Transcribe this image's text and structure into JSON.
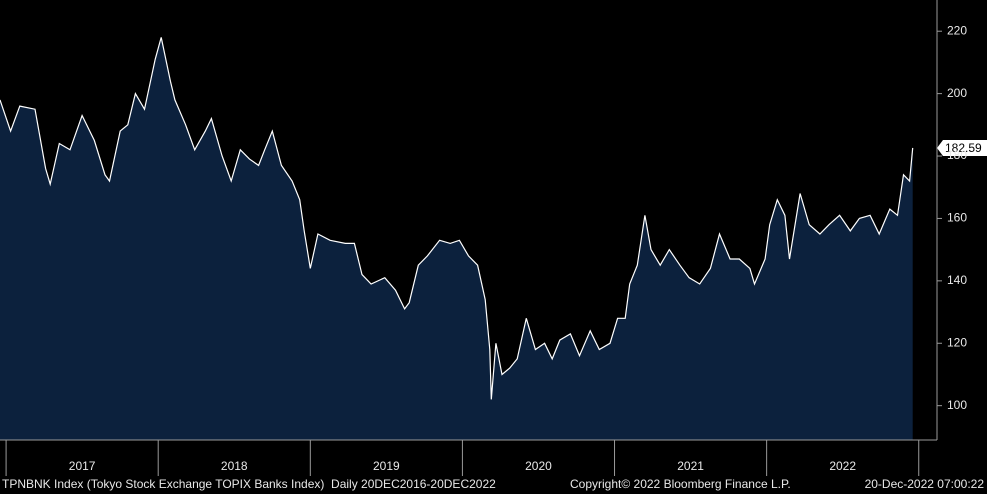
{
  "chart_data": {
    "type": "area",
    "x": [
      2016.96,
      2017.03,
      2017.09,
      2017.19,
      2017.26,
      2017.29,
      2017.35,
      2017.42,
      2017.5,
      2017.58,
      2017.65,
      2017.68,
      2017.75,
      2017.8,
      2017.85,
      2017.91,
      2017.98,
      2018.02,
      2018.08,
      2018.11,
      2018.18,
      2018.24,
      2018.31,
      2018.35,
      2018.42,
      2018.48,
      2018.54,
      2018.6,
      2018.66,
      2018.7,
      2018.75,
      2018.81,
      2018.88,
      2018.93,
      2018.96,
      2019.0,
      2019.05,
      2019.13,
      2019.23,
      2019.29,
      2019.34,
      2019.4,
      2019.49,
      2019.56,
      2019.62,
      2019.65,
      2019.71,
      2019.77,
      2019.85,
      2019.92,
      2019.98,
      2020.04,
      2020.1,
      2020.15,
      2020.18,
      2020.19,
      2020.22,
      2020.26,
      2020.31,
      2020.36,
      2020.42,
      2020.48,
      2020.54,
      2020.59,
      2020.64,
      2020.71,
      2020.77,
      2020.84,
      2020.9,
      2020.97,
      2021.02,
      2021.07,
      2021.1,
      2021.15,
      2021.2,
      2021.24,
      2021.3,
      2021.36,
      2021.43,
      2021.49,
      2021.56,
      2021.63,
      2021.69,
      2021.76,
      2021.82,
      2021.89,
      2021.92,
      2021.99,
      2022.02,
      2022.07,
      2022.12,
      2022.15,
      2022.22,
      2022.28,
      2022.35,
      2022.41,
      2022.48,
      2022.55,
      2022.61,
      2022.68,
      2022.74,
      2022.81,
      2022.86,
      2022.9,
      2022.94,
      2022.96
    ],
    "series": [
      {
        "color": "#ffffff",
        "fill": "#0c213d",
        "values": [
          198,
          188,
          196,
          195,
          176,
          171,
          184,
          182,
          193,
          185,
          174,
          172,
          188,
          190,
          200,
          195,
          211,
          218,
          204,
          198,
          190,
          182,
          188,
          192,
          180,
          172,
          182,
          179,
          177,
          182,
          188,
          177,
          172,
          166,
          156,
          144,
          155,
          153,
          152,
          152,
          142,
          139,
          141,
          137,
          131,
          133,
          145,
          148,
          153,
          152,
          153,
          148,
          145,
          134,
          118,
          102,
          120,
          110,
          112,
          115,
          128,
          118,
          120,
          115,
          121,
          123,
          116,
          124,
          118,
          120,
          128,
          128,
          139,
          145,
          161,
          150,
          145,
          150,
          145,
          141,
          139,
          144,
          155,
          147,
          147,
          144,
          139,
          147,
          158,
          166,
          161,
          147,
          168,
          158,
          155,
          158,
          161,
          156,
          160,
          161,
          155,
          163,
          161,
          174,
          172,
          182.59
        ]
      }
    ],
    "xlim": [
      2016.96,
      2023.12
    ],
    "xticks": [
      {
        "value": 2017,
        "label": "2017"
      },
      {
        "value": 2018,
        "label": "2018"
      },
      {
        "value": 2019,
        "label": "2019"
      },
      {
        "value": 2020,
        "label": "2020"
      },
      {
        "value": 2021,
        "label": "2021"
      },
      {
        "value": 2022,
        "label": "2022"
      }
    ],
    "ylim": [
      89,
      230
    ],
    "yticks": [
      100,
      120,
      140,
      160,
      180,
      200,
      220
    ],
    "footer": {
      "description": "TPNBNK Index (Tokyo Stock Exchange TOPIX Banks Index)  Daily 20DEC2016-20DEC2022",
      "copyright": "Copyright© 2022 Bloomberg Finance L.P.",
      "timestamp": "20-Dec-2022 07:00:22"
    }
  }
}
